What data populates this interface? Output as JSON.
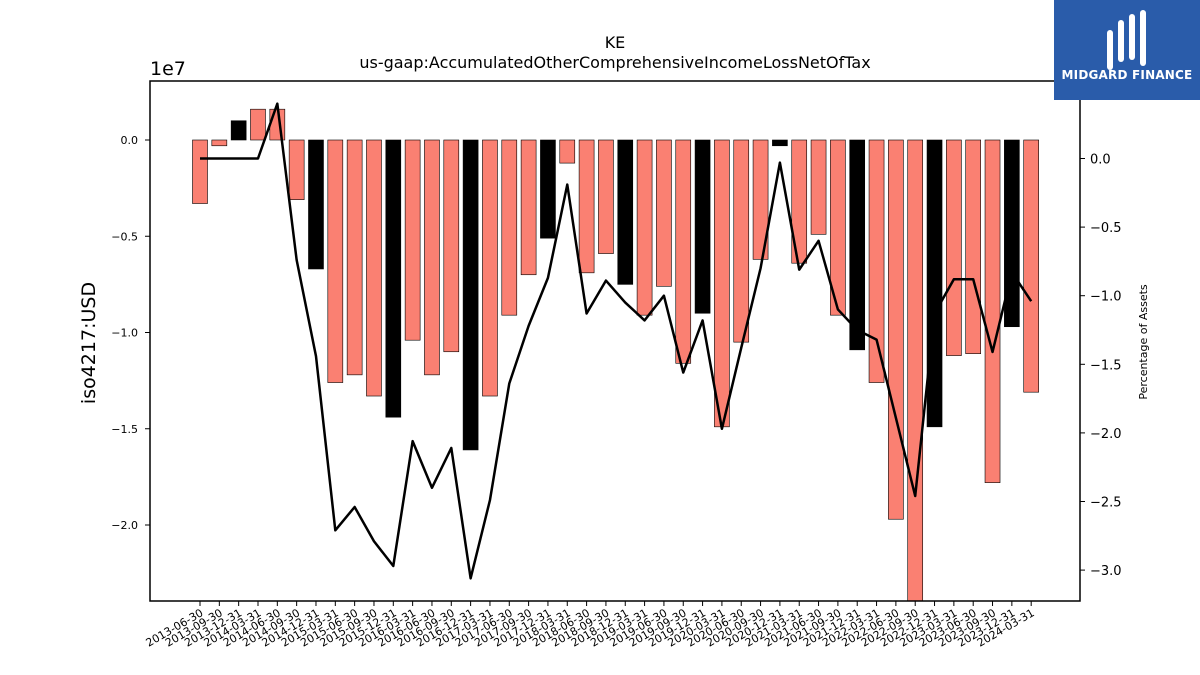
{
  "logo": {
    "text": "MIDGARD FINANCE",
    "bg_color": "#2a5caa"
  },
  "chart_data": {
    "type": "bar",
    "title": "KE",
    "subtitle": "us-gaap:AccumulatedOtherComprehensiveIncomeLossNetOfTax",
    "ylabel": "iso4217:USD",
    "y2label": "Percentage of Assets",
    "y_multiplier_label": "1e7",
    "ylim": [
      -2.4,
      0.3
    ],
    "y2lim": [
      -3.27,
      0.47
    ],
    "yticks": [
      0.0,
      -0.5,
      -1.0,
      -1.5,
      -2.0
    ],
    "ytick_labels": [
      "0.0",
      "−0.5",
      "−1.0",
      "−1.5",
      "−2.0"
    ],
    "y2ticks": [
      0.0,
      -0.5,
      -1.0,
      -1.5,
      -2.0,
      -2.5,
      -3.0
    ],
    "y2tick_labels": [
      "0.0",
      "−0.5",
      "−1.0",
      "−1.5",
      "−2.0",
      "−2.5",
      "−3.0"
    ],
    "categories": [
      "2013-06-30",
      "2013-09-30",
      "2013-12-31",
      "2014-03-31",
      "2014-06-30",
      "2014-09-30",
      "2014-12-31",
      "2015-03-31",
      "2015-06-30",
      "2015-09-30",
      "2015-12-31",
      "2016-03-31",
      "2016-06-30",
      "2016-09-30",
      "2016-12-31",
      "2017-03-31",
      "2017-06-30",
      "2017-09-30",
      "2017-12-31",
      "2018-03-31",
      "2018-06-30",
      "2018-09-30",
      "2018-12-31",
      "2019-03-31",
      "2019-06-30",
      "2019-09-30",
      "2019-12-31",
      "2020-03-31",
      "2020-06-30",
      "2020-09-30",
      "2020-12-31",
      "2021-03-31",
      "2021-06-30",
      "2021-09-30",
      "2021-12-31",
      "2022-03-31",
      "2022-06-30",
      "2022-09-30",
      "2022-12-31",
      "2023-03-31",
      "2023-06-30",
      "2023-09-30",
      "2023-12-31",
      "2024-03-31"
    ],
    "series": [
      {
        "kind": "bar",
        "values": [
          -0.33,
          -0.03,
          0.1,
          0.16,
          0.16,
          -0.31,
          -0.67,
          -1.26,
          -1.22,
          -1.33,
          -1.44,
          -1.04,
          -1.22,
          -1.1,
          -1.61,
          -1.33,
          -0.91,
          -0.7,
          -0.51,
          -0.12,
          -0.69,
          -0.59,
          -0.75,
          -0.91,
          -0.76,
          -1.16,
          -0.9,
          -1.49,
          -1.05,
          -0.62,
          -0.03,
          -0.64,
          -0.49,
          -0.91,
          -1.09,
          -1.26,
          -1.97,
          -2.4,
          -1.49,
          -1.12,
          -1.11,
          -1.78,
          -0.97,
          -1.31
        ],
        "colors": [
          "salmon",
          "salmon",
          "black",
          "salmon",
          "salmon",
          "salmon",
          "black",
          "salmon",
          "salmon",
          "salmon",
          "black",
          "salmon",
          "salmon",
          "salmon",
          "black",
          "salmon",
          "salmon",
          "salmon",
          "black",
          "salmon",
          "salmon",
          "salmon",
          "black",
          "salmon",
          "salmon",
          "salmon",
          "black",
          "salmon",
          "salmon",
          "salmon",
          "black",
          "salmon",
          "salmon",
          "salmon",
          "black",
          "salmon",
          "salmon",
          "salmon",
          "black",
          "salmon",
          "salmon",
          "salmon",
          "black",
          "salmon"
        ]
      },
      {
        "kind": "line",
        "axis": "right",
        "values": [
          0.0,
          0.0,
          0.0,
          0.0,
          0.4,
          -0.74,
          -1.44,
          -2.71,
          -2.54,
          -2.79,
          -2.97,
          -2.06,
          -2.4,
          -2.11,
          -3.06,
          -2.49,
          -1.64,
          -1.22,
          -0.87,
          -0.19,
          -1.13,
          -0.89,
          -1.05,
          -1.18,
          -1.0,
          -1.56,
          -1.18,
          -1.97,
          -1.38,
          -0.8,
          -0.03,
          -0.81,
          -0.6,
          -1.1,
          -1.25,
          -1.32,
          -1.89,
          -2.46,
          -1.13,
          -0.88,
          -0.88,
          -1.41,
          -0.83,
          -1.04
        ]
      }
    ],
    "colors": {
      "salmon": "#fa8072",
      "black": "#000000",
      "line": "#000000"
    }
  }
}
